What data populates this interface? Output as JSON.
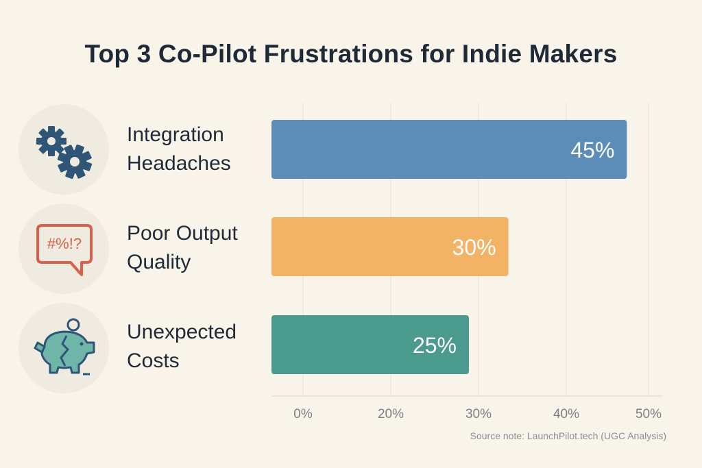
{
  "title": "Top 3 Co-Pilot Frustrations for Indie Makers",
  "source_note": "Source note: LaunchPilot.tech (UGC Analysis)",
  "icons": [
    "gears-icon",
    "speech-bubble-icon",
    "broken-piggy-bank-icon"
  ],
  "icon_bubble_text": "#%!?",
  "colors": {
    "background": "#f8f4ea",
    "bar_integration": "#5b8db8",
    "bar_quality": "#f2b366",
    "bar_costs": "#4a9a8d",
    "icon_navy": "#2f5577",
    "icon_red": "#d9604a",
    "icon_teal": "#6fb5a8"
  },
  "chart_data": {
    "type": "bar",
    "orientation": "horizontal",
    "categories": [
      "Integration Headaches",
      "Poor Output Quality",
      "Unexpected Costs"
    ],
    "category_lines": [
      [
        "Integration",
        "Headaches"
      ],
      [
        "Poor Output",
        "Quality"
      ],
      [
        "Unexpected",
        "Costs"
      ]
    ],
    "values": [
      45,
      30,
      25
    ],
    "value_labels": [
      "45%",
      "30%",
      "25%"
    ],
    "x_ticks": [
      "0%",
      "20%",
      "30%",
      "40%",
      "50%"
    ],
    "xlim": [
      0,
      50
    ],
    "grid": true,
    "legend": "none",
    "title": "Top 3 Co-Pilot Frustrations for Indie Makers",
    "xlabel": "",
    "ylabel": ""
  }
}
